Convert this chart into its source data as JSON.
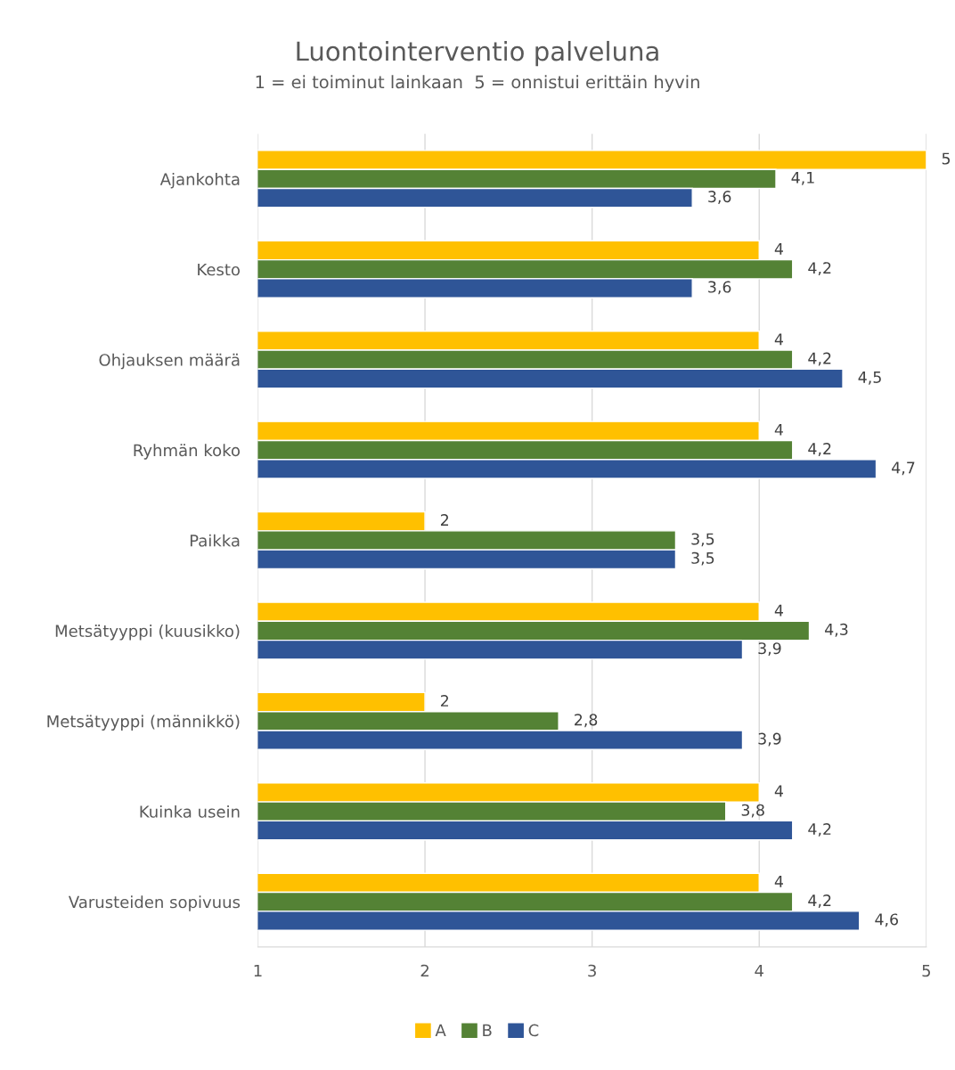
{
  "chart_data": {
    "type": "bar",
    "orientation": "horizontal",
    "title": "Luontointerventio palveluna",
    "subtitle": "1 = ei toiminut lainkaan  5 = onnistui erittäin hyvin",
    "categories": [
      "Ajankohta",
      "Kesto",
      "Ohjauksen määrä",
      "Ryhmän koko",
      "Paikka",
      "Metsätyyppi (kuusikko)",
      "Metsätyyppi (männikkö)",
      "Kuinka usein",
      "Varusteiden sopivuus"
    ],
    "series": [
      {
        "name": "A",
        "color": "#ffc000",
        "values": [
          5,
          4,
          4,
          4,
          2,
          4,
          2,
          4,
          4
        ],
        "value_labels": [
          "5",
          "4",
          "4",
          "4",
          "2",
          "4",
          "2",
          "4",
          "4"
        ]
      },
      {
        "name": "B",
        "color": "#548235",
        "values": [
          4.1,
          4.2,
          4.2,
          4.2,
          3.5,
          4.3,
          2.8,
          3.8,
          4.2
        ],
        "value_labels": [
          "4,1",
          "4,2",
          "4,2",
          "4,2",
          "3,5",
          "4,3",
          "2,8",
          "3,8",
          "4,2"
        ]
      },
      {
        "name": "C",
        "color": "#2f5597",
        "values": [
          3.6,
          3.6,
          4.5,
          4.7,
          3.5,
          3.9,
          3.9,
          4.2,
          4.6
        ],
        "value_labels": [
          "3,6",
          "3,6",
          "4,5",
          "4,7",
          "3,5",
          "3,9",
          "3,9",
          "4,2",
          "4,6"
        ]
      }
    ],
    "xlim": [
      1,
      5
    ],
    "xticks": [
      1,
      2,
      3,
      4,
      5
    ],
    "grid": "x",
    "legend": "bottom"
  }
}
